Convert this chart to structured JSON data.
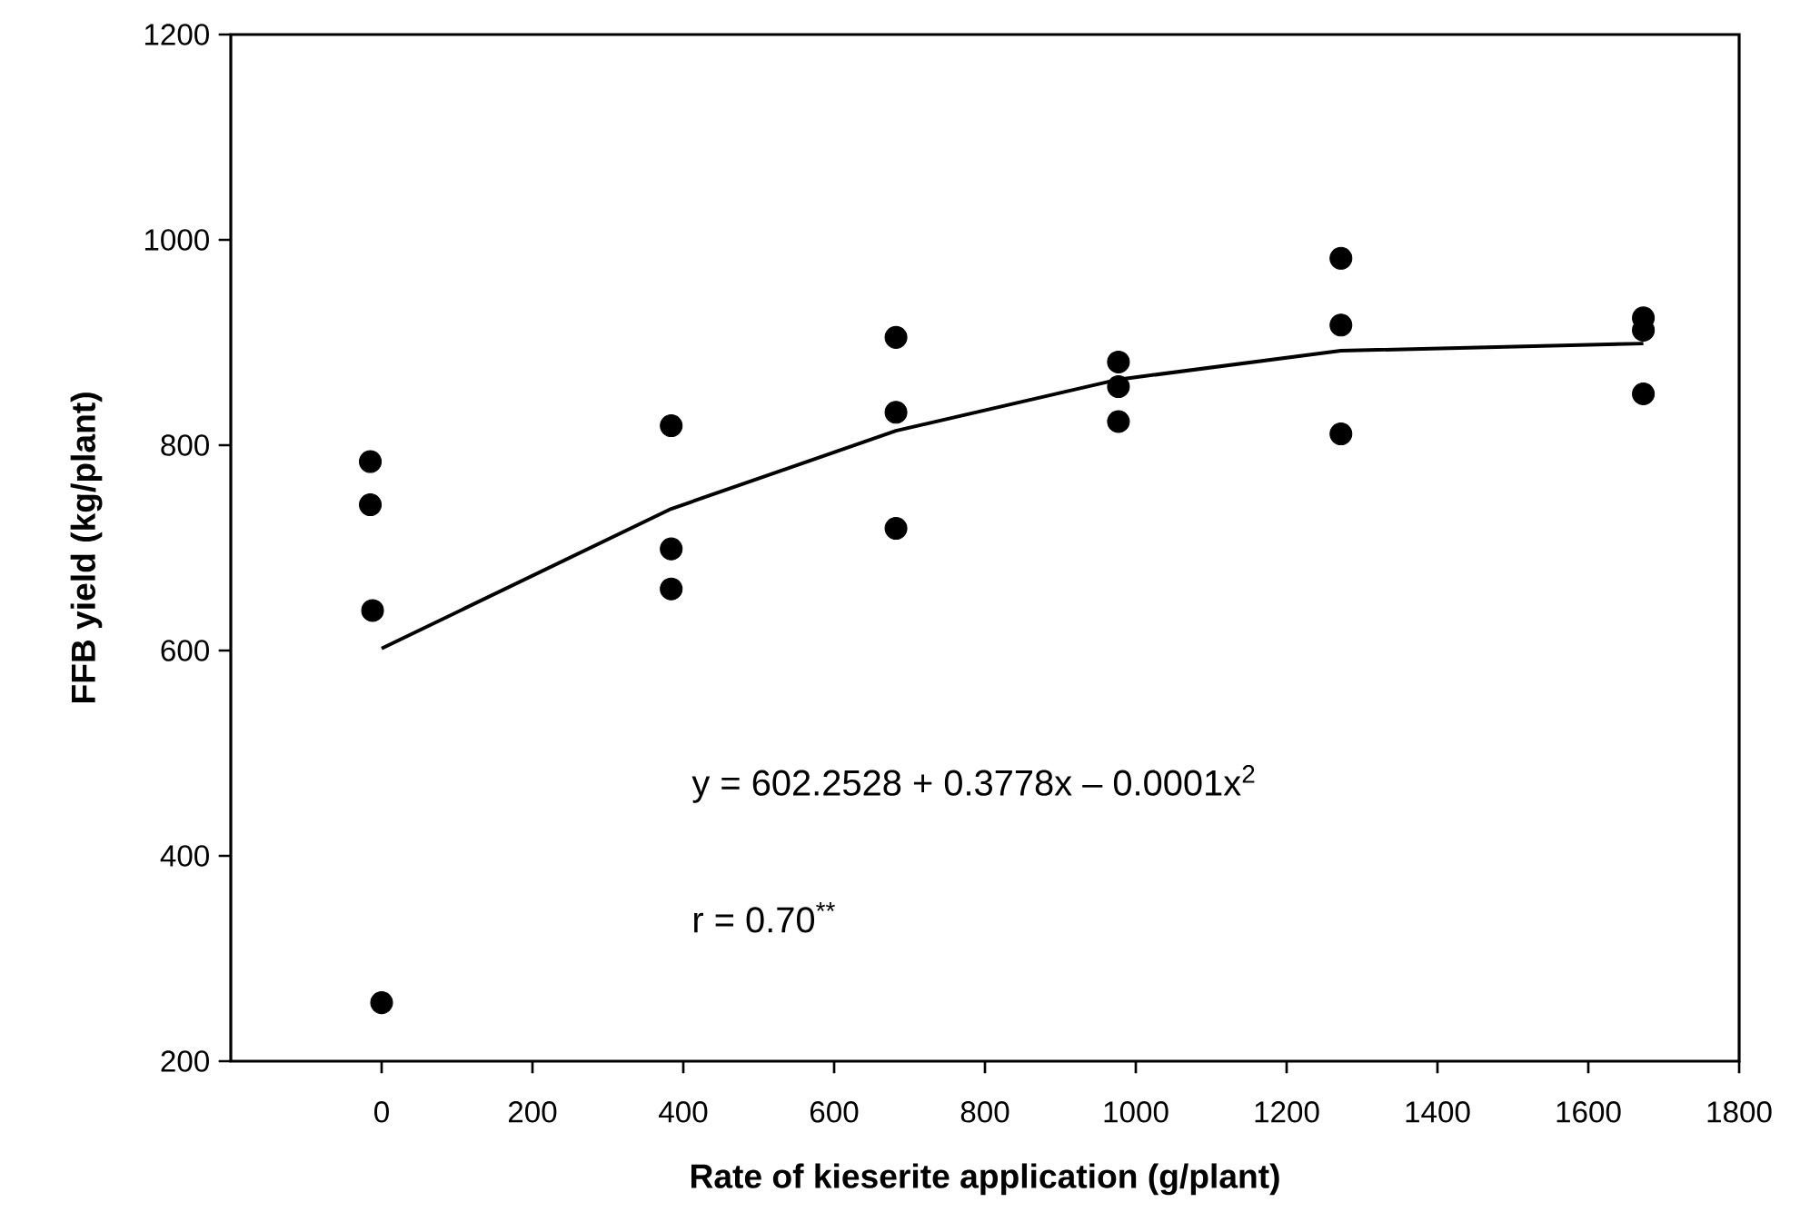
{
  "chart_data": {
    "type": "scatter",
    "xlabel": "Rate of kieserite application (g/plant)",
    "ylabel": "FFB yield (kg/plant)",
    "xlim": [
      -200,
      1800
    ],
    "ylim": [
      200,
      1200
    ],
    "xticks": [
      0,
      200,
      400,
      600,
      800,
      1000,
      1200,
      1400,
      1600,
      1800
    ],
    "yticks": [
      200,
      400,
      600,
      800,
      1000,
      1200
    ],
    "grid": false,
    "annotations": [
      "y = 602.2528 + 0.3778x – 0.0001x$^{2}$",
      "r = 0.70$^{**}$"
    ],
    "series": [
      {
        "marker": "circle",
        "color": "#000000",
        "x": [
          -15,
          -15,
          -12,
          0,
          384,
          384,
          384,
          682,
          682,
          682,
          977,
          977,
          977,
          1272,
          1272,
          1272,
          1673,
          1673,
          1673
        ],
        "values": [
          784,
          742,
          639,
          257,
          819,
          699,
          660,
          905,
          832,
          719,
          881,
          857,
          823,
          982,
          917,
          811,
          924,
          912,
          850
        ]
      },
      {
        "type": "line",
        "marker": "none",
        "line_style": "solid",
        "color": "#000000",
        "x": [
          0,
          384,
          682,
          977,
          1272,
          1673
        ],
        "values": [
          602,
          738,
          814,
          864,
          892,
          899
        ]
      }
    ]
  }
}
